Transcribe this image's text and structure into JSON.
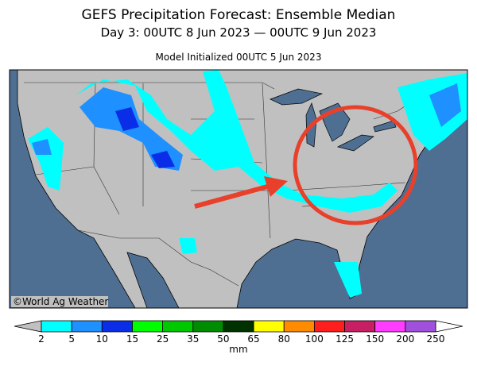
{
  "header": {
    "title": "GEFS Precipitation Forecast: Ensemble Median",
    "subtitle": "Day 3: 00UTC 8 Jun 2023 — 00UTC 9 Jun 2023",
    "initialized": "Model Initialized 00UTC 5 Jun 2023"
  },
  "credit": "©World Ag Weather",
  "legend": {
    "levels": [
      2,
      5,
      10,
      15,
      25,
      35,
      50,
      65,
      80,
      100,
      125,
      150,
      200,
      250
    ],
    "colors": [
      "#00ffff",
      "#1e90ff",
      "#0a2ee8",
      "#00ff00",
      "#00c800",
      "#008c00",
      "#003200",
      "#ffff00",
      "#ff8c00",
      "#ff1e1e",
      "#c81e64",
      "#ff3cff",
      "#a050dc"
    ],
    "below_color": "#c0c0c0",
    "above_color": "#ffffff",
    "unit": "mm"
  }
}
